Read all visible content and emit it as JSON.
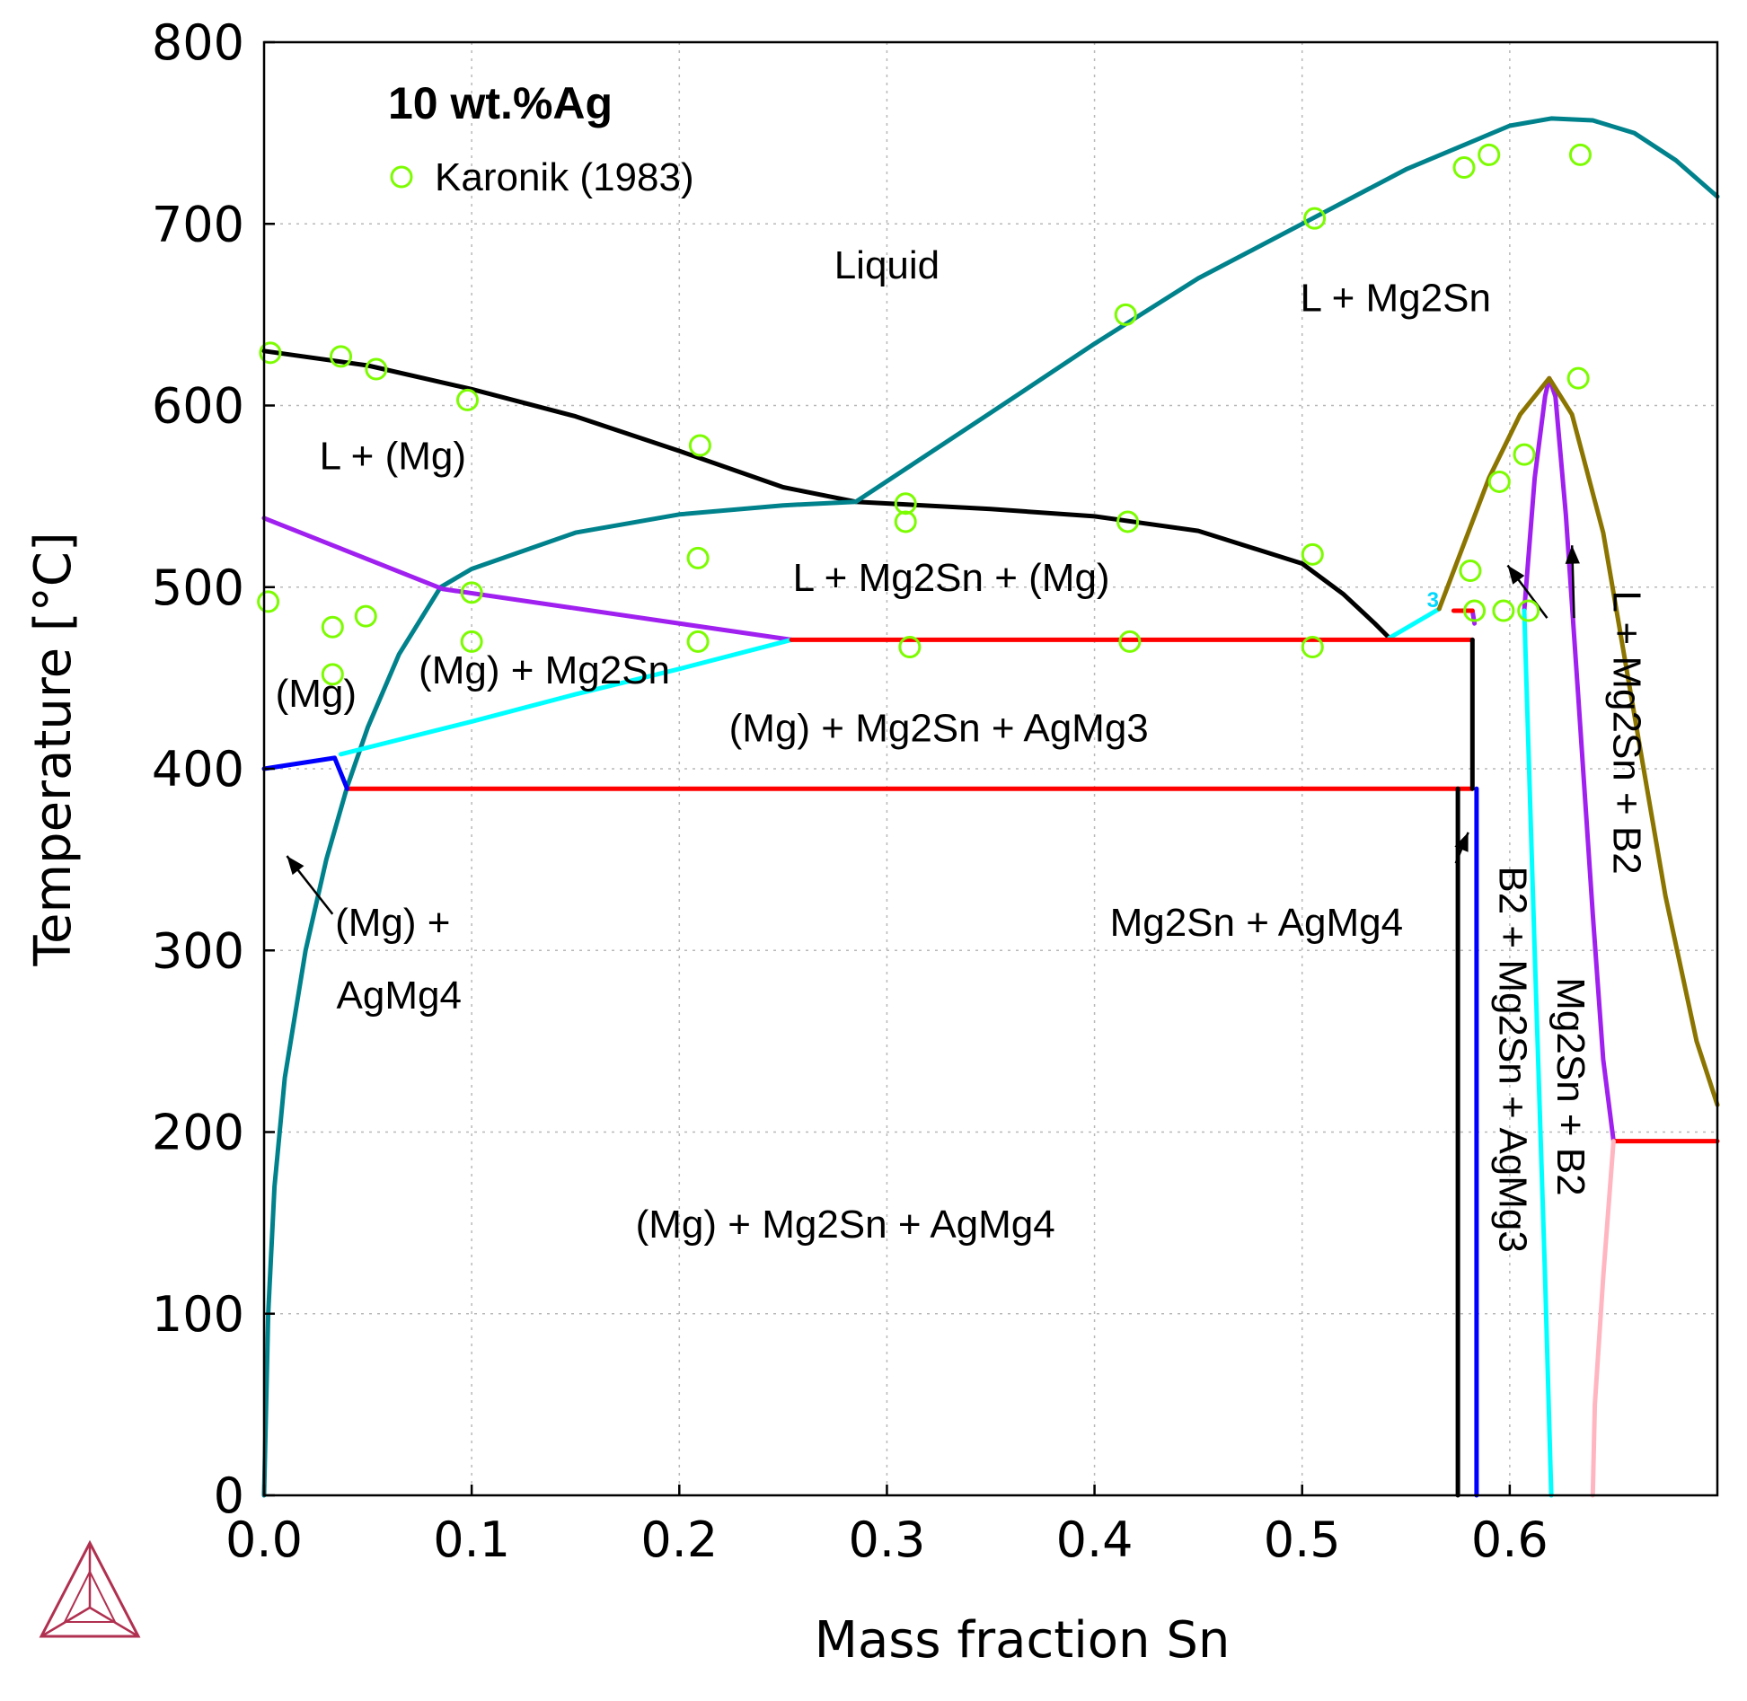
{
  "chart_data": {
    "type": "line",
    "title": "10 wt.%Ag",
    "xlabel": "Mass fraction Sn",
    "ylabel": "Temperature [°C]",
    "xlim": [
      0,
      0.7
    ],
    "ylim": [
      0,
      800
    ],
    "xticks": [
      0.0,
      0.1,
      0.2,
      0.3,
      0.4,
      0.5,
      0.6
    ],
    "xtick_labels": [
      "0.0",
      "0.1",
      "0.2",
      "0.3",
      "0.4",
      "0.5",
      "0.6"
    ],
    "yticks": [
      0,
      100,
      200,
      300,
      400,
      500,
      600,
      700,
      800
    ],
    "ytick_labels": [
      "0",
      "100",
      "200",
      "300",
      "400",
      "500",
      "600",
      "700",
      "800"
    ],
    "grid": true,
    "legend": {
      "position": "top-left",
      "entries": [
        {
          "label": "Karonik (1983)",
          "marker": "open-circle",
          "color": "#7cfc00"
        }
      ]
    },
    "scatter": {
      "name": "Karonik (1983)",
      "color": "#7cfc00",
      "points": [
        [
          0.003,
          629
        ],
        [
          0.037,
          627
        ],
        [
          0.054,
          620
        ],
        [
          0.098,
          603
        ],
        [
          0.21,
          578
        ],
        [
          0.309,
          546
        ],
        [
          0.309,
          536
        ],
        [
          0.416,
          536
        ],
        [
          0.415,
          650
        ],
        [
          0.506,
          703
        ],
        [
          0.578,
          731
        ],
        [
          0.59,
          738
        ],
        [
          0.634,
          738
        ],
        [
          0.633,
          615
        ],
        [
          0.002,
          492
        ],
        [
          0.033,
          478
        ],
        [
          0.049,
          484
        ],
        [
          0.1,
          497
        ],
        [
          0.033,
          452
        ],
        [
          0.1,
          470
        ],
        [
          0.209,
          516
        ],
        [
          0.209,
          470
        ],
        [
          0.311,
          467
        ],
        [
          0.417,
          470
        ],
        [
          0.505,
          467
        ],
        [
          0.505,
          518
        ],
        [
          0.581,
          509
        ],
        [
          0.583,
          487
        ],
        [
          0.597,
          487
        ],
        [
          0.609,
          487
        ],
        [
          0.595,
          558
        ],
        [
          0.607,
          573
        ]
      ]
    },
    "lines": [
      {
        "color": "#000000",
        "points": [
          [
            0,
            630
          ],
          [
            0.05,
            622
          ],
          [
            0.1,
            609
          ],
          [
            0.15,
            594
          ],
          [
            0.2,
            575
          ],
          [
            0.25,
            555
          ],
          [
            0.285,
            547
          ],
          [
            0.35,
            543
          ],
          [
            0.4,
            539
          ],
          [
            0.45,
            531
          ],
          [
            0.5,
            513
          ],
          [
            0.52,
            496
          ],
          [
            0.535,
            480
          ],
          [
            0.542,
            472
          ]
        ]
      },
      {
        "color": "#00828c",
        "points": [
          [
            0.285,
            547
          ],
          [
            0.35,
            596
          ],
          [
            0.4,
            634
          ],
          [
            0.45,
            670
          ],
          [
            0.5,
            700
          ],
          [
            0.55,
            730
          ],
          [
            0.6,
            754
          ],
          [
            0.62,
            758
          ],
          [
            0.64,
            757
          ],
          [
            0.66,
            750
          ],
          [
            0.68,
            735
          ],
          [
            0.7,
            715
          ]
        ]
      },
      {
        "color": "#00828c",
        "points": [
          [
            0.0,
            0
          ],
          [
            0.002,
            100
          ],
          [
            0.005,
            170
          ],
          [
            0.01,
            230
          ],
          [
            0.02,
            300
          ],
          [
            0.03,
            350
          ],
          [
            0.04,
            390
          ],
          [
            0.05,
            423
          ],
          [
            0.065,
            463
          ],
          [
            0.085,
            500
          ],
          [
            0.1,
            510
          ],
          [
            0.15,
            530
          ],
          [
            0.2,
            540
          ],
          [
            0.25,
            545
          ],
          [
            0.285,
            547
          ]
        ]
      },
      {
        "color": "#a020f0",
        "points": [
          [
            0,
            538
          ],
          [
            0.086,
            499
          ],
          [
            0.254,
            471
          ]
        ]
      },
      {
        "color": "#a020f0",
        "points": [
          [
            0.582,
            487
          ],
          [
            0.583,
            480
          ]
        ]
      },
      {
        "color": "#a020f0",
        "points": [
          [
            0.607,
            487
          ],
          [
            0.612,
            560
          ],
          [
            0.617,
            605
          ],
          [
            0.619,
            615
          ],
          [
            0.622,
            605
          ],
          [
            0.627,
            540
          ],
          [
            0.633,
            440
          ],
          [
            0.64,
            320
          ],
          [
            0.645,
            240
          ],
          [
            0.65,
            195
          ]
        ]
      },
      {
        "color": "#00ffff",
        "points": [
          [
            0.037,
            408
          ],
          [
            0.1,
            426
          ],
          [
            0.15,
            441
          ],
          [
            0.2,
            455
          ],
          [
            0.254,
            471
          ]
        ]
      },
      {
        "color": "#00ffff",
        "points": [
          [
            0.542,
            472
          ],
          [
            0.566,
            488
          ]
        ]
      },
      {
        "color": "#00ffff",
        "points": [
          [
            0.607,
            487
          ],
          [
            0.612,
            300
          ],
          [
            0.617,
            120
          ],
          [
            0.62,
            0
          ]
        ]
      },
      {
        "color": "#ff0000",
        "points": [
          [
            0.254,
            471
          ],
          [
            0.582,
            471
          ]
        ]
      },
      {
        "color": "#ff0000",
        "points": [
          [
            0.04,
            389
          ],
          [
            0.582,
            389
          ]
        ]
      },
      {
        "color": "#ff0000",
        "points": [
          [
            0.573,
            487
          ],
          [
            0.582,
            487
          ]
        ]
      },
      {
        "color": "#ff0000",
        "points": [
          [
            0.65,
            195
          ],
          [
            0.7,
            195
          ]
        ]
      },
      {
        "color": "#0000ff",
        "points": [
          [
            0,
            400
          ],
          [
            0.034,
            406
          ],
          [
            0.04,
            389
          ]
        ]
      },
      {
        "color": "#0000ff",
        "points": [
          [
            0.584,
            389
          ],
          [
            0.584,
            0
          ]
        ]
      },
      {
        "color": "#000000",
        "points": [
          [
            0.582,
            471
          ],
          [
            0.582,
            389
          ]
        ]
      },
      {
        "color": "#000000",
        "points": [
          [
            0.575,
            389
          ],
          [
            0.575,
            0
          ]
        ]
      },
      {
        "color": "#8b7500",
        "points": [
          [
            0.566,
            488
          ],
          [
            0.59,
            560
          ],
          [
            0.605,
            595
          ],
          [
            0.619,
            615
          ],
          [
            0.63,
            595
          ],
          [
            0.645,
            530
          ],
          [
            0.66,
            430
          ],
          [
            0.675,
            330
          ],
          [
            0.69,
            250
          ],
          [
            0.7,
            215
          ]
        ]
      },
      {
        "color": "#ffb6c1",
        "points": [
          [
            0.65,
            195
          ],
          [
            0.645,
            120
          ],
          [
            0.641,
            50
          ],
          [
            0.64,
            0
          ]
        ]
      }
    ],
    "annotations": [
      {
        "text": "Liquid",
        "x": 0.3,
        "y": 670
      },
      {
        "text": "L + Mg2Sn",
        "x": 0.545,
        "y": 652
      },
      {
        "text": "L + (Mg)",
        "x": 0.062,
        "y": 565
      },
      {
        "text": "L + Mg2Sn + (Mg)",
        "x": 0.331,
        "y": 498
      },
      {
        "text": "(Mg) + Mg2Sn",
        "x": 0.135,
        "y": 447
      },
      {
        "text": "(Mg)",
        "x": 0.025,
        "y": 434
      },
      {
        "text": "(Mg) + Mg2Sn + AgMg3",
        "x": 0.325,
        "y": 415
      },
      {
        "text": "(Mg) +",
        "x": 0.062,
        "y": 308
      },
      {
        "text": "AgMg4",
        "x": 0.065,
        "y": 268
      },
      {
        "text": "Mg2Sn + AgMg4",
        "x": 0.478,
        "y": 308
      },
      {
        "text": "(Mg) + Mg2Sn + AgMg4",
        "x": 0.28,
        "y": 142
      },
      {
        "text": "3",
        "x": 0.563,
        "y": 489
      }
    ],
    "rotated_annotations": [
      {
        "text": "B2 + Mg2Sn + AgMg3",
        "x": 0.595,
        "y": 240
      },
      {
        "text": "Mg2Sn + B2",
        "x": 0.623,
        "y": 225
      },
      {
        "text": "L + Mg2Sn + B2",
        "x": 0.65,
        "y": 420
      }
    ],
    "arrows": [
      {
        "from": [
          0.033,
          320
        ],
        "to": [
          0.011,
          352
        ]
      },
      {
        "from": [
          0.574,
          348
        ],
        "to": [
          0.58,
          365
        ]
      },
      {
        "from": [
          0.618,
          483
        ],
        "to": [
          0.599,
          512
        ]
      },
      {
        "from": [
          0.631,
          483
        ],
        "to": [
          0.63,
          523
        ]
      }
    ]
  }
}
